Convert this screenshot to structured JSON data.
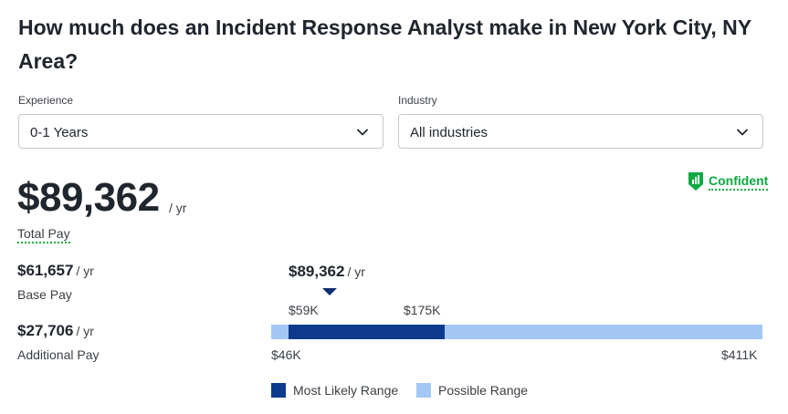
{
  "title": "How much does an Incident Response Analyst make in New York City, NY Area?",
  "filters": {
    "experience": {
      "label": "Experience",
      "value": "0-1 Years"
    },
    "industry": {
      "label": "Industry",
      "value": "All industries"
    }
  },
  "total": {
    "amount": "$89,362",
    "unit": "/ yr",
    "label": "Total Pay"
  },
  "confidence": {
    "label": "Confident",
    "icon": "signal-shield-icon",
    "color": "#0caa41"
  },
  "base": {
    "amount": "$61,657",
    "unit": "/ yr",
    "label": "Base Pay"
  },
  "additional": {
    "amount": "$27,706",
    "unit": "/ yr",
    "label": "Additional Pay"
  },
  "range": {
    "marker_amount": "$89,362",
    "marker_unit": "/ yr",
    "likely_low_label": "$59K",
    "likely_high_label": "$175K",
    "possible_low_label": "$46K",
    "possible_high_label": "$411K",
    "likely_low": 59,
    "likely_high": 175,
    "possible_low": 46,
    "possible_high": 411
  },
  "legend": {
    "most_likely": "Most Likely Range",
    "possible": "Possible Range",
    "most_likely_color": "#0d3a8c",
    "possible_color": "#a3c6f5"
  }
}
